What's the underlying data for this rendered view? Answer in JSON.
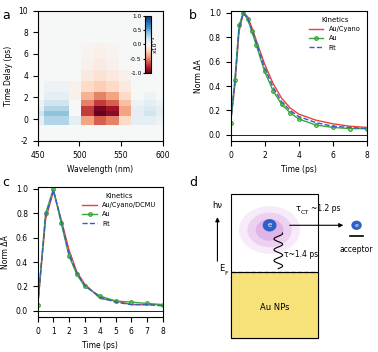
{
  "chart_data": [
    {
      "panel": "a",
      "type": "heatmap",
      "x": [
        450,
        465,
        480,
        495,
        510,
        525,
        540,
        555,
        570,
        585,
        600
      ],
      "y": [
        -2,
        -1,
        0,
        0.5,
        1,
        1.5,
        2,
        3,
        4,
        5,
        6,
        8,
        10
      ],
      "cells": [
        [
          0,
          0,
          0,
          0,
          0,
          0,
          0,
          0,
          0,
          0,
          0
        ],
        [
          0,
          0,
          0,
          0,
          0,
          0,
          0,
          0,
          0,
          0,
          0
        ],
        [
          0.1,
          0.3,
          0.3,
          0.1,
          -0.4,
          -0.6,
          -0.5,
          -0.2,
          0.1,
          0.1,
          0.05
        ],
        [
          0.2,
          0.4,
          0.4,
          0.0,
          -0.7,
          -1.0,
          -0.9,
          -0.4,
          0.1,
          0.2,
          0.1
        ],
        [
          0.1,
          0.3,
          0.3,
          0.0,
          -0.7,
          -0.95,
          -0.85,
          -0.4,
          0.1,
          0.15,
          0.1
        ],
        [
          0.05,
          0.2,
          0.2,
          0.0,
          -0.5,
          -0.7,
          -0.6,
          -0.3,
          0.05,
          0.1,
          0.05
        ],
        [
          0.0,
          0.1,
          0.1,
          -0.05,
          -0.35,
          -0.5,
          -0.4,
          -0.2,
          0.0,
          0.05,
          0.0
        ],
        [
          0,
          0.05,
          0.05,
          -0.05,
          -0.2,
          -0.25,
          -0.2,
          -0.1,
          0,
          0,
          0
        ],
        [
          0,
          0,
          0,
          0,
          -0.1,
          -0.15,
          -0.1,
          -0.05,
          0,
          0,
          0
        ],
        [
          0,
          0,
          0,
          0,
          -0.05,
          -0.08,
          -0.05,
          0,
          0,
          0,
          0
        ],
        [
          0,
          0,
          0,
          0,
          -0.03,
          -0.05,
          -0.03,
          0,
          0,
          0,
          0
        ],
        [
          0,
          0,
          0,
          0,
          0,
          0,
          0,
          0,
          0,
          0,
          0
        ],
        [
          0,
          0,
          0,
          0,
          0,
          0,
          0,
          0,
          0,
          0,
          0
        ]
      ],
      "xlim": [
        450,
        600
      ],
      "ylim": [
        -2,
        10
      ],
      "xticks": [
        450,
        500,
        550,
        600
      ],
      "yticks": [
        -2,
        0,
        2,
        4,
        6,
        8,
        10
      ],
      "x_label": "Wavelength (nm)",
      "y_label": "Time Delay (ps)",
      "colorbar_range": [
        -1.0,
        1.0
      ],
      "colorbar_ticks": [
        -1.0,
        -0.5,
        0.0,
        0.5,
        1.0
      ],
      "colorbar_label": "x10⁻³"
    },
    {
      "panel": "b",
      "type": "line",
      "x": [
        0,
        0.25,
        0.5,
        0.75,
        1.0,
        1.25,
        1.5,
        2,
        2.5,
        3,
        3.5,
        4,
        5,
        6,
        7,
        8
      ],
      "xlim": [
        0,
        8
      ],
      "ylim": [
        -0.05,
        1.02
      ],
      "xticks": [
        0,
        2,
        4,
        6,
        8
      ],
      "yticks": [
        0.0,
        0.2,
        0.4,
        0.6,
        0.8,
        1.0
      ],
      "x_label": "Time (ps)",
      "y_label": "Norm ΔA",
      "legend": "upper right",
      "legend_title": "Kinetics",
      "series": [
        {
          "name": "Au/Cyano",
          "color": "#e8423a",
          "line_style": "solid",
          "marker": "none",
          "values": [
            0.1,
            0.4,
            0.85,
            1.0,
            0.97,
            0.88,
            0.78,
            0.58,
            0.42,
            0.3,
            0.22,
            0.17,
            0.12,
            0.09,
            0.07,
            0.06
          ]
        },
        {
          "name": "Au",
          "color": "#3aa83a",
          "line_style": "solid",
          "marker": "o",
          "values": [
            0.1,
            0.45,
            0.9,
            1.0,
            0.95,
            0.85,
            0.74,
            0.52,
            0.36,
            0.25,
            0.18,
            0.13,
            0.08,
            0.06,
            0.05,
            0.05
          ]
        },
        {
          "name": "Fit",
          "color": "#2f5fc9",
          "line_style": "dashed",
          "marker": "none",
          "values": [
            0.1,
            0.42,
            0.88,
            1.0,
            0.96,
            0.86,
            0.76,
            0.55,
            0.39,
            0.27,
            0.2,
            0.15,
            0.1,
            0.07,
            0.06,
            0.05
          ]
        }
      ]
    },
    {
      "panel": "c",
      "type": "line",
      "x": [
        0,
        0.5,
        1,
        1.5,
        2,
        2.5,
        3,
        4,
        5,
        6,
        7,
        8
      ],
      "xlim": [
        0,
        8
      ],
      "ylim": [
        -0.05,
        1.02
      ],
      "xticks": [
        0,
        1,
        2,
        3,
        4,
        5,
        6,
        7,
        8
      ],
      "yticks": [
        0.0,
        0.2,
        0.4,
        0.6,
        0.8,
        1.0
      ],
      "x_label": "Time (ps)",
      "y_label": "Norm ΔA",
      "legend": "upper right",
      "legend_title": "Kinetics",
      "series": [
        {
          "name": "Au/Cyano/DCMU",
          "color": "#e8423a",
          "line_style": "solid",
          "marker": "none",
          "values": [
            0.05,
            0.75,
            0.98,
            0.75,
            0.5,
            0.32,
            0.22,
            0.1,
            0.08,
            0.05,
            0.05,
            0.05
          ]
        },
        {
          "name": "Au",
          "color": "#3aa83a",
          "line_style": "solid",
          "marker": "o",
          "values": [
            0.05,
            0.8,
            1.0,
            0.72,
            0.45,
            0.3,
            0.2,
            0.12,
            0.08,
            0.07,
            0.06,
            0.05
          ]
        },
        {
          "name": "Fit",
          "color": "#2f5fc9",
          "line_style": "dashed",
          "marker": "none",
          "values": [
            0.05,
            0.78,
            0.99,
            0.74,
            0.47,
            0.31,
            0.21,
            0.11,
            0.07,
            0.05,
            0.05,
            0.04
          ]
        }
      ]
    },
    {
      "panel": "d",
      "type": "diagram",
      "photon": "hν",
      "fermi": {
        "symbol": "E",
        "sub": "F"
      },
      "electron": "e",
      "transfer": {
        "symbol": "τ",
        "sub": "CT",
        "text": "~1.2 ps"
      },
      "relaxation": "τ~1.4 ps",
      "acceptor": "acceptor",
      "metal": "Au NPs"
    }
  ]
}
